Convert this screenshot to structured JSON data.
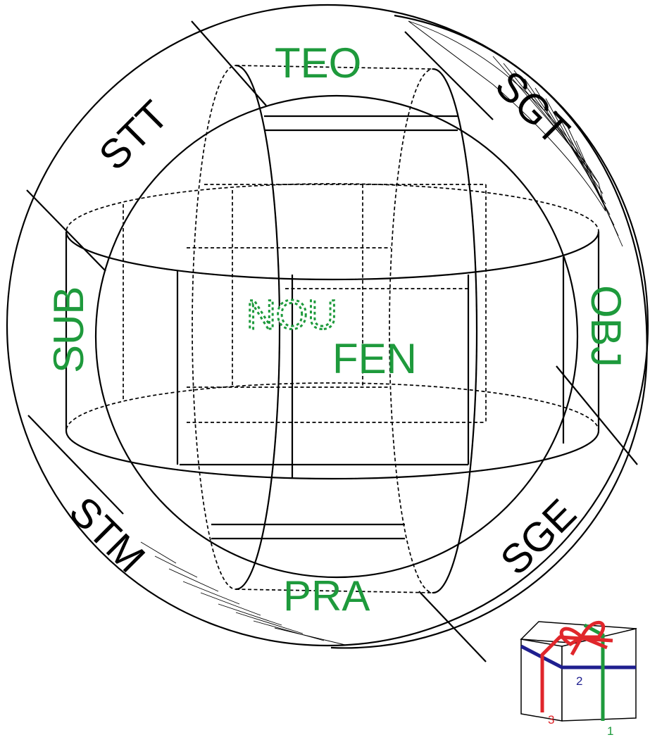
{
  "diagram": {
    "outer_labels": {
      "top": "TEO",
      "top_left": "STT",
      "top_right": "SGT",
      "left": "SUB",
      "right": "OBJ",
      "bottom_left": "STM",
      "bottom_right": "SGE",
      "bottom": "PRA"
    },
    "center_labels": {
      "hidden": "NOU",
      "front": "FEN"
    },
    "gift_box": {
      "numbers": [
        "1",
        "2",
        "3"
      ],
      "colors": {
        "ribbon_red": "#e0262b",
        "ribbon_green": "#1e9a3c",
        "ribbon_blue": "#1f1f8f"
      }
    },
    "colors": {
      "label_green": "#1e9a3c",
      "line": "#000000"
    }
  }
}
